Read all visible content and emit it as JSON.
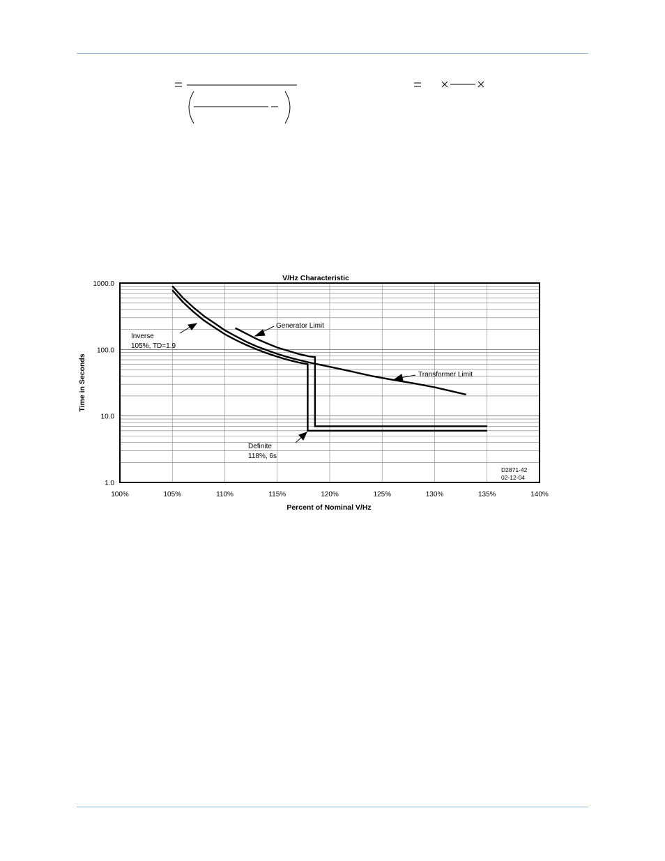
{
  "chart_data": {
    "type": "line",
    "title": "V/Hz Characteristic",
    "xlabel": "Percent of Nominal V/Hz",
    "ylabel": "Time in Seconds",
    "x_tick_labels": [
      "100%",
      "105%",
      "110%",
      "115%",
      "120%",
      "125%",
      "130%",
      "135%",
      "140%"
    ],
    "y_tick_labels": [
      "1.0",
      "10.0",
      "100.0",
      "1000.0"
    ],
    "xlim": [
      100,
      140
    ],
    "ylim": [
      1,
      1000
    ],
    "y_scale": "log",
    "grid": true,
    "series": [
      {
        "name": "Transformer Limit",
        "x": [
          105,
          106,
          107,
          108,
          109,
          110,
          111,
          112,
          113,
          114,
          115,
          116,
          117,
          118,
          120,
          122,
          124,
          126,
          128,
          130,
          133
        ],
        "y": [
          900,
          600,
          430,
          320,
          250,
          195,
          160,
          132,
          112,
          98,
          86,
          77,
          70,
          64,
          55,
          47,
          40,
          35,
          31,
          27,
          21
        ]
      },
      {
        "name": "Generator Limit",
        "x": [
          111,
          112,
          113,
          114,
          115,
          116,
          117,
          118,
          118.6,
          118.6,
          135
        ],
        "y": [
          210,
          175,
          145,
          124,
          107,
          96,
          86,
          79,
          77,
          7,
          7
        ]
      },
      {
        "name": "Inverse 105%, TD=1.9 / Definite 118%, 6s",
        "x": [
          105,
          106,
          107,
          108,
          109,
          110,
          111,
          112,
          113,
          114,
          115,
          116,
          117,
          117.9,
          117.9,
          135
        ],
        "y": [
          780,
          520,
          370,
          275,
          215,
          170,
          140,
          118,
          101,
          88,
          78,
          70,
          64,
          60,
          6,
          6
        ]
      }
    ],
    "annotations": {
      "inverse_line1": "Inverse",
      "inverse_line2": "105%, TD=1.9",
      "generator": "Generator Limit",
      "transformer": "Transformer Limit",
      "definite_line1": "Definite",
      "definite_line2": "118%, 6s",
      "drawing_id_line1": "D2871-42",
      "drawing_id_line2": "02-12-04"
    }
  }
}
